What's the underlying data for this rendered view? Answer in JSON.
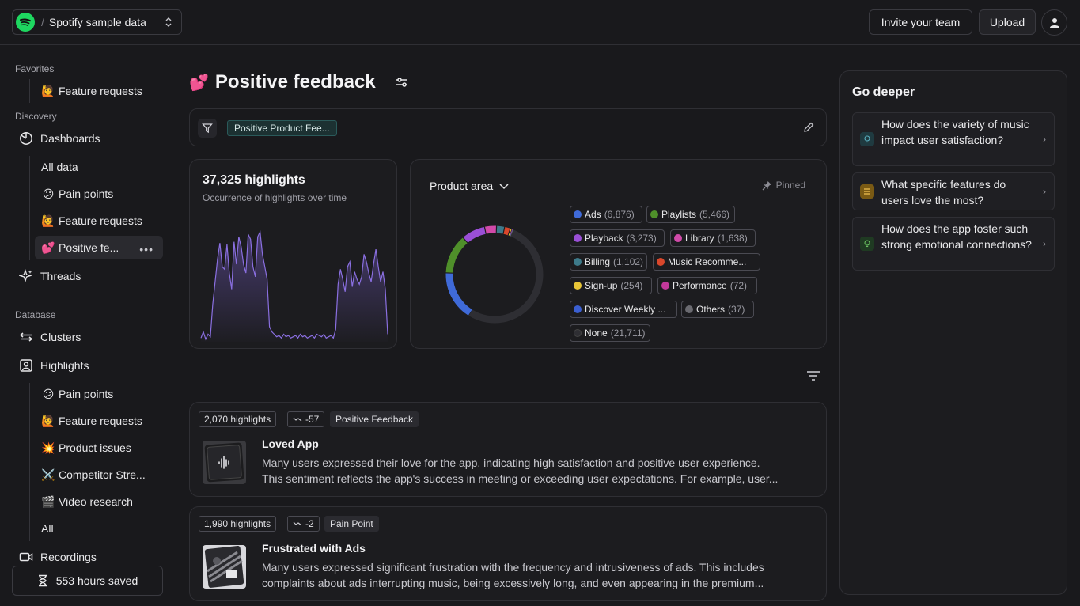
{
  "workspace": {
    "name": "Spotify sample data",
    "separator": "/"
  },
  "header": {
    "invite_label": "Invite your team",
    "upload_label": "Upload"
  },
  "sidebar": {
    "favorites_label": "Favorites",
    "favorites": [
      {
        "emoji": "🙋",
        "label": "Feature requests"
      }
    ],
    "discovery_label": "Discovery",
    "dashboards_label": "Dashboards",
    "dashboard_items": [
      {
        "emoji": "",
        "label": "All data"
      },
      {
        "emoji": "😕",
        "label": "Pain points"
      },
      {
        "emoji": "🙋",
        "label": "Feature requests"
      },
      {
        "emoji": "💕",
        "label": "Positive fe...",
        "active": true
      }
    ],
    "more_glyph": "•••",
    "threads_label": "Threads",
    "database_label": "Database",
    "clusters_label": "Clusters",
    "highlights_label": "Highlights",
    "highlight_items": [
      {
        "emoji": "😕",
        "label": "Pain points"
      },
      {
        "emoji": "🙋",
        "label": "Feature requests"
      },
      {
        "emoji": "💥",
        "label": "Product issues"
      },
      {
        "emoji": "⚔️",
        "label": "Competitor Stre..."
      },
      {
        "emoji": "🎬",
        "label": "Video research"
      },
      {
        "emoji": "",
        "label": "All"
      }
    ],
    "recordings_label": "Recordings",
    "saved_label": "553 hours saved"
  },
  "page": {
    "emoji": "💕",
    "title": "Positive feedback",
    "filter_tag": "Positive Product Fee..."
  },
  "highlights_card": {
    "title": "37,325 highlights",
    "subtitle": "Occurrence of highlights over time"
  },
  "chart_data": {
    "type": "area",
    "title": "37,325 highlights",
    "subtitle": "Occurrence of highlights over time",
    "x": [
      0,
      1,
      2,
      3,
      4,
      5,
      6,
      7,
      8,
      9,
      10,
      11,
      12,
      13,
      14,
      15,
      16,
      17,
      18,
      19,
      20,
      21,
      22,
      23,
      24,
      25,
      26,
      27,
      28,
      29,
      30,
      31,
      32,
      33,
      34,
      35,
      36,
      37,
      38,
      39,
      40,
      41,
      42,
      43,
      44,
      45,
      46,
      47,
      48,
      49,
      50,
      51,
      52,
      53,
      54,
      55,
      56,
      57,
      58,
      59,
      60,
      61,
      62,
      63,
      64,
      65,
      66,
      67,
      68,
      69,
      70,
      71,
      72,
      73,
      74,
      75,
      76,
      77,
      78,
      79
    ],
    "values": [
      3,
      8,
      2,
      6,
      4,
      30,
      48,
      66,
      79,
      60,
      58,
      78,
      55,
      42,
      80,
      62,
      84,
      76,
      62,
      55,
      86,
      82,
      60,
      52,
      84,
      88,
      70,
      60,
      50,
      12,
      8,
      6,
      4,
      5,
      3,
      6,
      4,
      5,
      3,
      4,
      5,
      3,
      6,
      4,
      5,
      3,
      4,
      5,
      3,
      6,
      5,
      4,
      6,
      3,
      4,
      5,
      3,
      10,
      46,
      58,
      50,
      40,
      60,
      64,
      44,
      56,
      50,
      46,
      52,
      70,
      64,
      55,
      48,
      62,
      74,
      60,
      48,
      56,
      42,
      6
    ],
    "ylim": [
      0,
      100
    ]
  },
  "product_area": {
    "title": "Product area",
    "pinned_label": "Pinned",
    "categories": [
      {
        "label": "Ads",
        "count": "(6,876)",
        "value": 6876,
        "color": "#3f6ad8"
      },
      {
        "label": "Playlists",
        "count": "(5,466)",
        "value": 5466,
        "color": "#4f8f2a"
      },
      {
        "label": "Playback",
        "count": "(3,273)",
        "value": 3273,
        "color": "#9a4fd6"
      },
      {
        "label": "Library",
        "count": "(1,638)",
        "value": 1638,
        "color": "#d14aa9"
      },
      {
        "label": "Billing",
        "count": "(1,102)",
        "value": 1102,
        "color": "#3d7a8a"
      },
      {
        "label": "Music Recomme...",
        "count": "",
        "value": 800,
        "color": "#d9472b"
      },
      {
        "label": "Sign-up",
        "count": "(254)",
        "value": 254,
        "color": "#e8c537"
      },
      {
        "label": "Performance",
        "count": "(72)",
        "value": 72,
        "color": "#c2389a"
      },
      {
        "label": "Discover Weekly ...",
        "count": "",
        "value": 60,
        "color": "#3b5fd1"
      },
      {
        "label": "Others",
        "count": "(37)",
        "value": 37,
        "color": "#6a6a70"
      },
      {
        "label": "None",
        "count": "(21,711)",
        "value": 21711,
        "color": "#2e2e33"
      }
    ]
  },
  "feedback": [
    {
      "count_label": "2,070 highlights",
      "trend": "-57",
      "tag": "Positive Feedback",
      "title": "Loved App",
      "line1": "Many users expressed their love for the app, indicating high satisfaction and positive user experience.",
      "line2": "This sentiment reflects the app's success in meeting or exceeding user expectations. For example, user..."
    },
    {
      "count_label": "1,990 highlights",
      "trend": "-2",
      "tag": "Pain Point",
      "title": "Frustrated with Ads",
      "line1": "Many users expressed significant frustration with the frequency and intrusiveness of ads. This includes",
      "line2": "complaints about ads interrupting music, being excessively long, and even appearing in the premium..."
    }
  ],
  "go_deeper": {
    "title": "Go deeper",
    "questions": [
      {
        "text": "How does the variety of music impact user satisfaction?",
        "icon": "lightbulb-icon",
        "color": "#2f6f7a"
      },
      {
        "text": "What specific features do users love the most?",
        "icon": "list-icon",
        "color": "#c8962a"
      },
      {
        "text": "How does the app foster such strong emotional connections?",
        "icon": "lightbulb-icon",
        "color": "#3f8a3a"
      }
    ]
  }
}
